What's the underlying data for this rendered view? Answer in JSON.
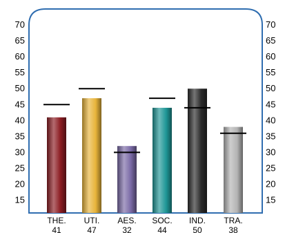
{
  "chart_data": {
    "type": "bar",
    "categories": [
      "THE.",
      "UTI.",
      "AES.",
      "SOC.",
      "IND.",
      "TRA."
    ],
    "values": [
      41,
      47,
      32,
      44,
      50,
      38
    ],
    "value_labels": [
      "41",
      "47",
      "32",
      "44",
      "50",
      "38"
    ],
    "benchmarks": [
      45,
      50,
      30,
      47,
      44,
      36
    ],
    "yticks": [
      "15",
      "20",
      "25",
      "30",
      "35",
      "40",
      "45",
      "50",
      "55",
      "60",
      "65",
      "70"
    ],
    "ylim": [
      11,
      75
    ],
    "y_axes": "both-sides",
    "grid": false,
    "legend": "none",
    "frame_color": "#2f6db0",
    "bar_colors": [
      "#8b1c22",
      "#e8b43a",
      "#7a6aa6",
      "#1f9797",
      "#2a2a2a",
      "#b4b4b4"
    ],
    "benchmark_color": "#000000"
  }
}
